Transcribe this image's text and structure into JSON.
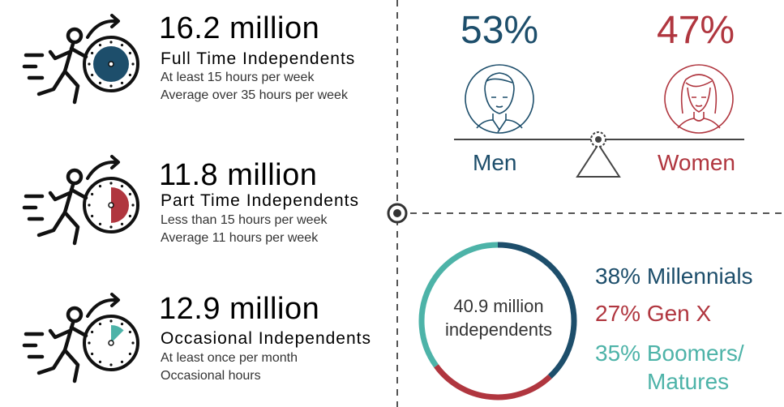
{
  "segments": [
    {
      "count": "16.2 million",
      "label": "Full Time Independents",
      "line1": "At least 15 hours per week",
      "line2": "Average over 35 hours per week",
      "color": "#1d4e6b",
      "fill_fraction": 1.0
    },
    {
      "count": "11.8 million",
      "label": "Part Time Independents",
      "line1": "Less than 15 hours per week",
      "line2": "Average 11 hours per week",
      "color": "#b0363f",
      "fill_fraction": 0.5
    },
    {
      "count": "12.9 million",
      "label": "Occasional Independents",
      "line1": "At least once per month",
      "line2": "Occasional hours",
      "color": "#4db3a8",
      "fill_fraction": 0.125
    }
  ],
  "gender": {
    "men_pct": "53%",
    "men_label": "Men",
    "men_color": "#1d4e6b",
    "women_pct": "47%",
    "women_label": "Women",
    "women_color": "#b0363f"
  },
  "chart_data": {
    "type": "pie",
    "center_label_1": "40.9 million",
    "center_label_2": "independents",
    "categories": [
      "Millennials",
      "Gen X",
      "Boomers/ Matures"
    ],
    "values": [
      38,
      27,
      35
    ],
    "labels": [
      "38% Millennials",
      "27% Gen X",
      "35% Boomers/"
    ],
    "label_3b": "Matures",
    "colors": [
      "#1d4e6b",
      "#b0363f",
      "#4db3a8"
    ]
  }
}
